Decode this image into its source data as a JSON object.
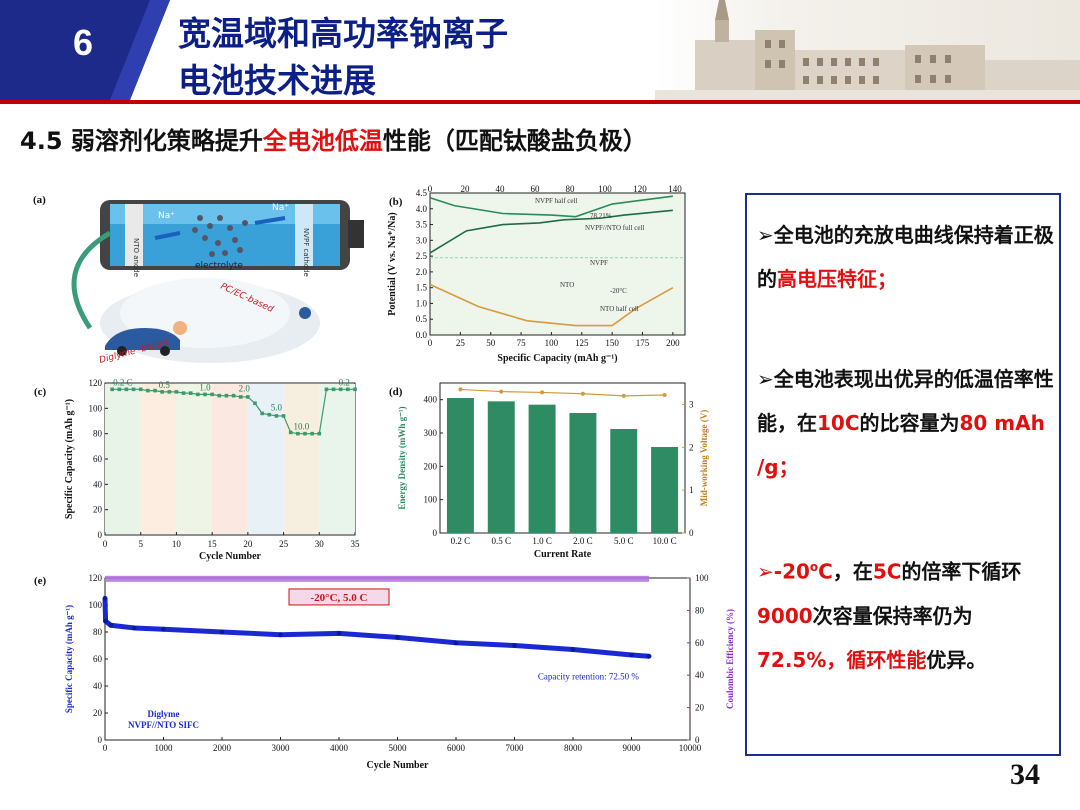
{
  "header": {
    "section_number": "6",
    "title_line1": "宽温域和高功率钠离子",
    "title_line2": "电池技术进展"
  },
  "heading": {
    "prefix": "4.5 弱溶剂化策略提升",
    "highlight": "全电池低温",
    "suffix": "性能（匹配钛酸盐负极）"
  },
  "colors": {
    "accent_red": "#e01010",
    "navy": "#1a2f8c",
    "title_blue": "#0c1f86"
  },
  "panel_a": {
    "label": "(a)",
    "ions": [
      "Na⁺",
      "Na⁺"
    ],
    "electrolyte": "electrolyte",
    "cell_left": "NTO anode",
    "cell_right": "NVPF cathode",
    "pc_ec": "PC/EC-based",
    "diglyme": "Diglyme -based"
  },
  "chart_data": [
    {
      "id": "b",
      "type": "line",
      "label": "(b)",
      "xlabel": "Specific Capacity (mAh g⁻¹)",
      "ylabel": "Potential (V vs. Na⁺/Na)",
      "x_bottom_ticks": [
        0,
        25,
        50,
        75,
        100,
        125,
        150,
        175,
        200
      ],
      "x_top_ticks": [
        0,
        20,
        40,
        60,
        80,
        100,
        120,
        140
      ],
      "y_ticks": [
        0,
        0.5,
        1.0,
        1.5,
        2.0,
        2.5,
        3.0,
        3.5,
        4.0,
        4.5
      ],
      "xlim": [
        0,
        210
      ],
      "ylim": [
        0,
        4.5
      ],
      "annotations": [
        "NVPF half cell",
        "78.21%",
        "NVPF//NTO full cell",
        "NVPF",
        "NTO",
        "-20°C",
        "NTO half cell"
      ],
      "series": [
        {
          "name": "NVPF half cell",
          "x": [
            0,
            20,
            60,
            100,
            120,
            150,
            200
          ],
          "y": [
            4.35,
            4.1,
            3.85,
            3.8,
            3.75,
            4.15,
            4.4
          ]
        },
        {
          "name": "NVPF//NTO full cell",
          "x": [
            0,
            30,
            60,
            90,
            110,
            140,
            160,
            200
          ],
          "y": [
            2.6,
            3.3,
            3.5,
            3.55,
            3.65,
            3.7,
            3.8,
            3.95
          ]
        },
        {
          "name": "NTO half cell",
          "x": [
            0,
            40,
            80,
            120,
            150,
            170,
            200
          ],
          "y": [
            1.6,
            0.9,
            0.45,
            0.3,
            0.3,
            0.85,
            1.5
          ]
        }
      ]
    },
    {
      "id": "c",
      "type": "line",
      "label": "(c)",
      "xlabel": "Cycle Number",
      "ylabel": "Specific Capacity (mAh g⁻¹)",
      "xlim": [
        0,
        35
      ],
      "ylim": [
        0,
        120
      ],
      "x_ticks": [
        0,
        5,
        10,
        15,
        20,
        25,
        30,
        35
      ],
      "y_ticks": [
        0,
        20,
        40,
        60,
        80,
        100,
        120
      ],
      "rate_labels": [
        "0.2 C",
        "0.5",
        "1.0",
        "2.0",
        "5.0",
        "10.0",
        "0.2"
      ],
      "x": [
        1,
        2,
        3,
        4,
        5,
        6,
        7,
        8,
        9,
        10,
        11,
        12,
        13,
        14,
        15,
        16,
        17,
        18,
        19,
        20,
        21,
        22,
        23,
        24,
        25,
        26,
        27,
        28,
        29,
        30,
        31,
        32,
        33,
        34,
        35
      ],
      "values": [
        115,
        115,
        115,
        115,
        115,
        114,
        114,
        113,
        113,
        113,
        112,
        112,
        111,
        111,
        111,
        110,
        110,
        110,
        109,
        109,
        104,
        96,
        95,
        94,
        94,
        81,
        80,
        80,
        80,
        80,
        115,
        115,
        115,
        115,
        115
      ]
    },
    {
      "id": "d",
      "type": "bar",
      "label": "(d)",
      "xlabel": "Current Rate",
      "ylabel": "Energy Density (mWh g⁻¹)",
      "y2label": "Mid-working Voltage (V)",
      "categories": [
        "0.2 C",
        "0.5 C",
        "1.0 C",
        "2.0 C",
        "5.0 C",
        "10.0 C"
      ],
      "values": [
        405,
        395,
        385,
        360,
        312,
        258
      ],
      "line_values": [
        3.35,
        3.3,
        3.28,
        3.25,
        3.2,
        3.22
      ],
      "ylim": [
        0,
        450
      ],
      "y2lim": [
        0,
        3.5
      ],
      "y_ticks": [
        0,
        100,
        200,
        300,
        400
      ],
      "y2_ticks": [
        0,
        1,
        2,
        3
      ]
    },
    {
      "id": "e",
      "type": "scatter",
      "label": "(e)",
      "xlabel": "Cycle Number",
      "ylabel": "Specific Capacity (mAh g⁻¹)",
      "y2label": "Coulombic Efficiency (%)",
      "xlim": [
        0,
        10000
      ],
      "ylim": [
        0,
        120
      ],
      "y2lim": [
        0,
        100
      ],
      "x_ticks": [
        0,
        1000,
        2000,
        3000,
        4000,
        5000,
        6000,
        7000,
        8000,
        9000,
        10000
      ],
      "y_ticks": [
        0,
        20,
        40,
        60,
        80,
        100,
        120
      ],
      "y2_ticks": [
        0,
        20,
        40,
        60,
        80,
        100
      ],
      "condition": "-20°C, 5.0 C",
      "retention": "Capacity retention: 72.50 %",
      "legend_line1": "Diglyme",
      "legend_line2": "NVPF//NTO SIFC",
      "series": [
        {
          "name": "capacity",
          "x": [
            0,
            10,
            100,
            500,
            1000,
            2000,
            3000,
            4000,
            5000,
            6000,
            7000,
            8000,
            9000,
            9300
          ],
          "y": [
            105,
            88,
            85,
            83,
            82,
            80,
            78,
            79,
            76,
            72,
            70,
            67,
            63,
            62
          ]
        },
        {
          "name": "coulombic efficiency",
          "x": [
            0,
            9300
          ],
          "y": [
            99.5,
            99.5
          ]
        }
      ]
    }
  ],
  "textbox": {
    "b1_pre": "全电池的充放电曲线保持着正极的",
    "b1_red": "高电压特征；",
    "b2_a": "全电池表现出优异的低温倍率性能，在",
    "b2_red1": "10C",
    "b2_b": "的比容量为",
    "b2_red2": "80 mAh /g；",
    "b3_red1": "-20",
    "b3_sup": "o",
    "b3_red1b": "C",
    "b3_a": "，在",
    "b3_red2": "5C",
    "b3_b": "的倍率下循环",
    "b3_red3": "9000",
    "b3_c": "次容量保持率仍为",
    "b3_red4": "72.5%，循环性能",
    "b3_d": "优异。"
  },
  "page_number": "34"
}
